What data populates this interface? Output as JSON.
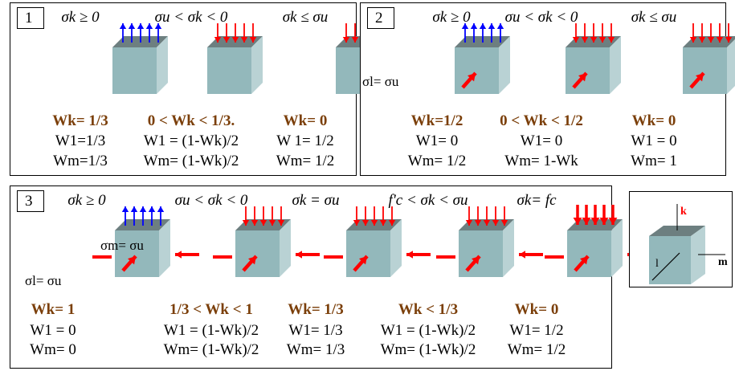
{
  "panels": [
    {
      "tag": "1",
      "cols": [
        {
          "cond": "σk ≥ 0",
          "top": "up",
          "wk": "Wk= 1/3",
          "w1": "W1=1/3",
          "wm": "Wm=1/3"
        },
        {
          "cond": "σu < σk < 0",
          "top": "down",
          "wk": "0 < Wk < 1/3.",
          "w1": "W1 = (1-Wk)/2",
          "wm": "Wm= (1-Wk)/2"
        },
        {
          "cond": "σk ≤ σu",
          "top": "down",
          "wk": "Wk= 0",
          "w1": "W 1= 1/2",
          "wm": "Wm= 1/2"
        }
      ]
    },
    {
      "tag": "2",
      "sigma_label": "σl= σu",
      "cols": [
        {
          "cond": "σk ≥ 0",
          "top": "up",
          "wk": "Wk=1/2",
          "w1": "W1= 0",
          "wm": "Wm= 1/2"
        },
        {
          "cond": "σu < σk < 0",
          "top": "down",
          "wk": "0 < Wk < 1/2",
          "w1": "W1= 0",
          "wm": "Wm= 1-Wk"
        },
        {
          "cond": "σk ≤ σu",
          "top": "down",
          "wk": "Wk= 0",
          "w1": "W1 = 0",
          "wm": "Wm= 1"
        }
      ]
    },
    {
      "tag": "3",
      "sigma_m_label": "σm= σu",
      "sigma_l_label": "σl= σu",
      "cols": [
        {
          "cond": "σk ≥ 0",
          "top": "up",
          "wk": "Wk= 1",
          "w1": "W1 = 0",
          "wm": "Wm= 0"
        },
        {
          "cond": "σu < σk < 0",
          "top": "down",
          "wk": "1/3 < Wk < 1",
          "w1": "W1 = (1-Wk)/2",
          "wm": "Wm= (1-Wk)/2"
        },
        {
          "cond": "σk = σu",
          "top": "down",
          "wk": "Wk= 1/3",
          "w1": "W1= 1/3",
          "wm": "Wm= 1/3"
        },
        {
          "cond": "f'c < σk < σu",
          "top": "down",
          "wk": "Wk < 1/3",
          "w1": "W1 = (1-Wk)/2",
          "wm": "Wm= (1-Wk)/2"
        },
        {
          "cond": "σk= fc",
          "top": "down-bold",
          "wk": "Wk= 0",
          "w1": "W1= 1/2",
          "wm": "Wm= 1/2"
        }
      ]
    }
  ],
  "axes": {
    "k": "k",
    "l": "l",
    "m": "m"
  },
  "colors": {
    "cube_front": "#93b8bb",
    "cube_top": "#6d7f80",
    "cube_side": "#b9d2d4",
    "arrow_up": "#0000ff",
    "arrow_down": "#ff0000",
    "wk_text": "#7b3f0a"
  }
}
